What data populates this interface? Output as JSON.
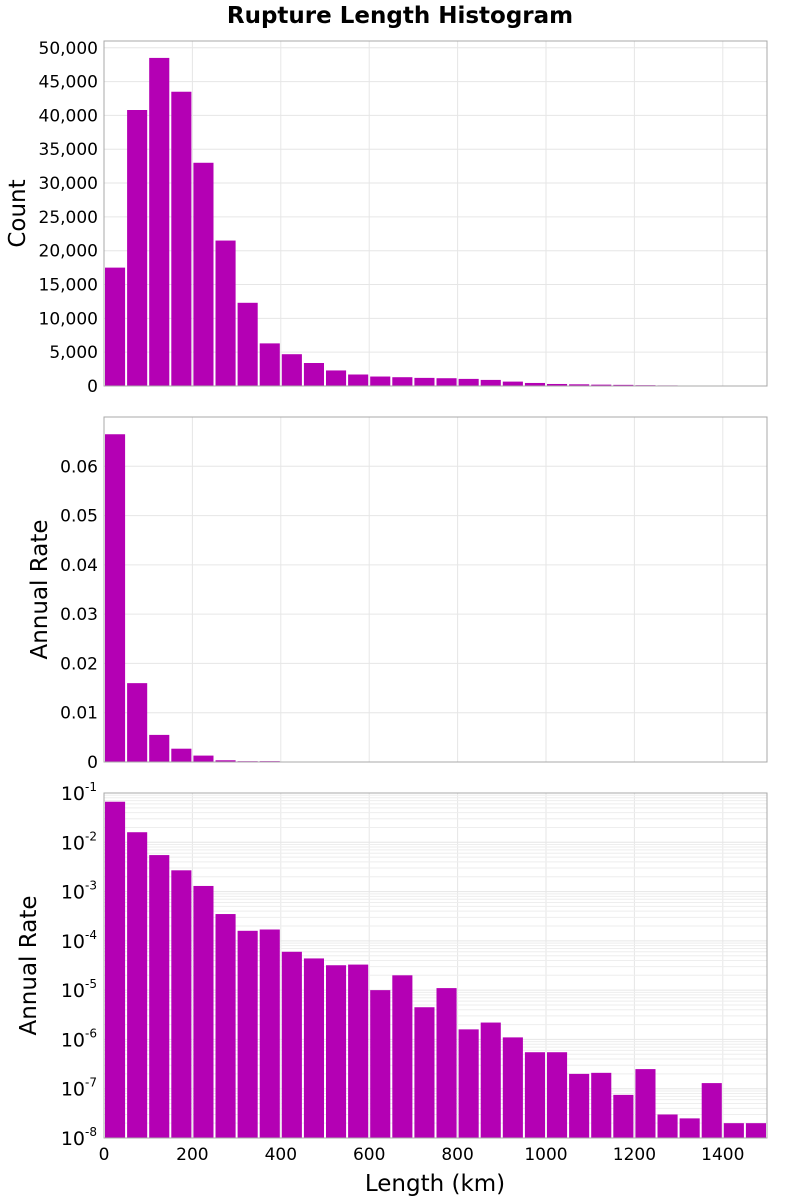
{
  "chart_data": {
    "type": "bar",
    "title": "Rupture Length Histogram",
    "xlabel": "Length (km)",
    "bin_width": 50,
    "x": [
      25,
      75,
      125,
      175,
      225,
      275,
      325,
      375,
      425,
      475,
      525,
      575,
      625,
      675,
      725,
      775,
      825,
      875,
      925,
      975,
      1025,
      1075,
      1125,
      1175,
      1225,
      1275,
      1325,
      1375,
      1425,
      1475
    ],
    "xlim": [
      0,
      1500
    ],
    "xticks": [
      0,
      200,
      400,
      600,
      800,
      1000,
      1200,
      1400
    ],
    "xtick_labels": [
      "0",
      "200",
      "400",
      "600",
      "800",
      "1000",
      "1200",
      "1400"
    ],
    "color": "#b400b4",
    "panels": [
      {
        "ylabel": "Count",
        "scale": "linear",
        "ylim": [
          0,
          51000
        ],
        "yticks": [
          0,
          5000,
          10000,
          15000,
          20000,
          25000,
          30000,
          35000,
          40000,
          45000,
          50000
        ],
        "ytick_labels": [
          "0",
          "5,000",
          "10,000",
          "15,000",
          "20,000",
          "25,000",
          "30,000",
          "35,000",
          "40,000",
          "45,000",
          "50,000"
        ],
        "grid": true,
        "values": [
          17500,
          40800,
          48500,
          43500,
          33000,
          21500,
          12300,
          6300,
          4700,
          3400,
          2300,
          1700,
          1400,
          1300,
          1200,
          1150,
          1050,
          900,
          650,
          450,
          300,
          250,
          200,
          170,
          120,
          90,
          60,
          40,
          25,
          15
        ]
      },
      {
        "ylabel": "Annual Rate",
        "scale": "linear",
        "ylim": [
          0,
          0.07
        ],
        "yticks": [
          0,
          0.01,
          0.02,
          0.03,
          0.04,
          0.05,
          0.06
        ],
        "ytick_labels": [
          "0",
          "0.01",
          "0.02",
          "0.03",
          "0.04",
          "0.05",
          "0.06"
        ],
        "grid": true,
        "values": [
          0.0665,
          0.016,
          0.0055,
          0.0027,
          0.0013,
          0.00035,
          0.00016,
          0.00017,
          6e-05,
          4.4e-05,
          3.2e-05,
          3.3e-05,
          1e-05,
          2e-05,
          4.5e-06,
          1.1e-05,
          1.6e-06,
          2.2e-06,
          1.1e-06,
          5.5e-07,
          5.5e-07,
          2e-07,
          2.1e-07,
          7.5e-08,
          2.5e-07,
          3e-08,
          2.5e-08,
          1.3e-07,
          2e-08,
          2e-08
        ]
      },
      {
        "ylabel": "Annual Rate",
        "scale": "log",
        "ylim": [
          1e-08,
          0.1
        ],
        "yticks": [
          1e-08,
          1e-07,
          1e-06,
          1e-05,
          0.0001,
          0.001,
          0.01,
          0.1
        ],
        "ytick_labels": [
          {
            "base": "10",
            "exp": "-8"
          },
          {
            "base": "10",
            "exp": "-7"
          },
          {
            "base": "10",
            "exp": "-6"
          },
          {
            "base": "10",
            "exp": "-5"
          },
          {
            "base": "10",
            "exp": "-4"
          },
          {
            "base": "10",
            "exp": "-3"
          },
          {
            "base": "10",
            "exp": "-2"
          },
          {
            "base": "10",
            "exp": "-1"
          }
        ],
        "grid": true,
        "values": [
          0.0665,
          0.016,
          0.0055,
          0.0027,
          0.0013,
          0.00035,
          0.00016,
          0.00017,
          6e-05,
          4.4e-05,
          3.2e-05,
          3.3e-05,
          1e-05,
          2e-05,
          4.5e-06,
          1.1e-05,
          1.6e-06,
          2.2e-06,
          1.1e-06,
          5.5e-07,
          5.5e-07,
          2e-07,
          2.1e-07,
          7.5e-08,
          2.5e-07,
          3e-08,
          2.5e-08,
          1.3e-07,
          2e-08,
          2e-08
        ]
      }
    ]
  }
}
